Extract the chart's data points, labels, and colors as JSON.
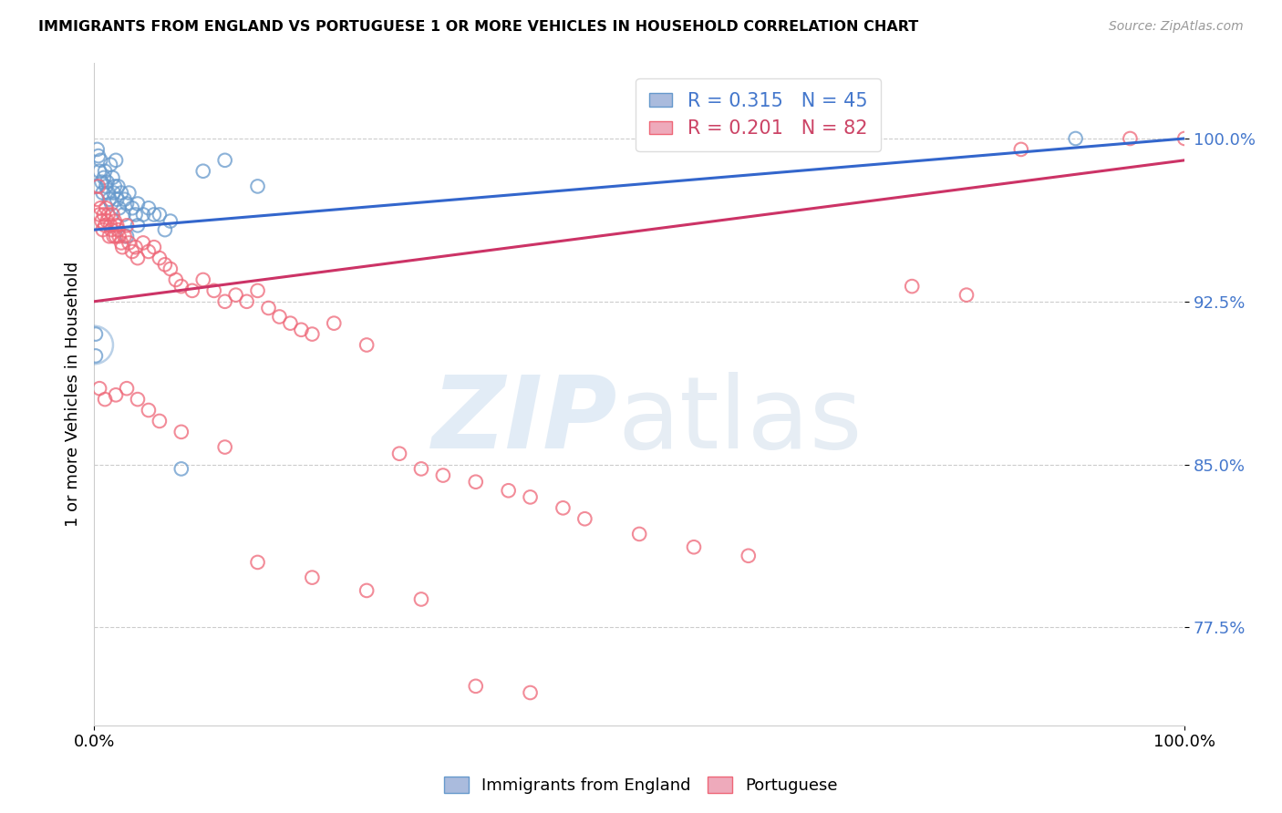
{
  "title": "IMMIGRANTS FROM ENGLAND VS PORTUGUESE 1 OR MORE VEHICLES IN HOUSEHOLD CORRELATION CHART",
  "source": "Source: ZipAtlas.com",
  "ylabel": "1 or more Vehicles in Household",
  "yticks": [
    77.5,
    85.0,
    92.5,
    100.0
  ],
  "ytick_labels": [
    "77.5%",
    "85.0%",
    "92.5%",
    "100.0%"
  ],
  "xrange": [
    0.0,
    100.0
  ],
  "yrange": [
    73.0,
    103.5
  ],
  "england_color": "#6699cc",
  "portuguese_color": "#ee6677",
  "england_r": 0.315,
  "england_n": 45,
  "portuguese_r": 0.201,
  "portuguese_n": 82,
  "england_x": [
    0.2,
    0.3,
    0.4,
    0.5,
    0.6,
    0.7,
    0.8,
    0.9,
    1.0,
    1.1,
    1.2,
    1.3,
    1.4,
    1.5,
    1.6,
    1.7,
    1.8,
    1.9,
    2.0,
    2.1,
    2.2,
    2.3,
    2.5,
    2.7,
    2.8,
    3.0,
    3.2,
    3.5,
    3.8,
    4.0,
    4.5,
    5.0,
    5.5,
    6.0,
    6.5,
    7.0,
    8.0,
    10.0,
    12.0,
    15.0,
    90.0,
    0.15,
    0.15,
    3.0,
    4.0
  ],
  "england_y": [
    97.8,
    99.5,
    99.2,
    98.5,
    99.0,
    98.0,
    97.5,
    98.2,
    98.5,
    97.8,
    98.0,
    97.5,
    97.2,
    98.8,
    97.0,
    98.2,
    97.5,
    97.8,
    99.0,
    97.2,
    97.8,
    96.8,
    97.5,
    96.5,
    97.2,
    97.0,
    97.5,
    96.8,
    96.5,
    97.0,
    96.5,
    96.8,
    96.5,
    96.5,
    95.8,
    96.2,
    84.8,
    98.5,
    99.0,
    97.8,
    100.0,
    90.0,
    91.0,
    95.5,
    96.0
  ],
  "england_y_large": [
    90.5
  ],
  "england_x_large": [
    0.0
  ],
  "portugal_x": [
    0.3,
    0.4,
    0.5,
    0.6,
    0.7,
    0.8,
    0.9,
    1.0,
    1.1,
    1.2,
    1.3,
    1.4,
    1.5,
    1.6,
    1.7,
    1.8,
    1.9,
    2.0,
    2.1,
    2.2,
    2.3,
    2.5,
    2.6,
    2.8,
    3.0,
    3.2,
    3.5,
    3.8,
    4.0,
    4.5,
    5.0,
    5.5,
    6.0,
    6.5,
    7.0,
    7.5,
    8.0,
    9.0,
    10.0,
    11.0,
    12.0,
    13.0,
    14.0,
    15.0,
    16.0,
    17.0,
    18.0,
    19.0,
    20.0,
    22.0,
    25.0,
    28.0,
    30.0,
    32.0,
    35.0,
    38.0,
    40.0,
    43.0,
    45.0,
    50.0,
    55.0,
    60.0,
    0.5,
    1.0,
    2.0,
    3.0,
    4.0,
    5.0,
    6.0,
    8.0,
    12.0,
    15.0,
    20.0,
    25.0,
    30.0,
    35.0,
    40.0,
    100.0,
    95.0,
    85.0,
    80.0,
    75.0
  ],
  "portugal_y": [
    97.2,
    97.8,
    96.5,
    96.8,
    96.2,
    95.8,
    96.5,
    96.0,
    96.8,
    96.2,
    96.5,
    95.5,
    96.0,
    95.8,
    96.5,
    95.5,
    96.2,
    95.5,
    96.0,
    95.8,
    95.5,
    95.2,
    95.0,
    95.5,
    96.0,
    95.2,
    94.8,
    95.0,
    94.5,
    95.2,
    94.8,
    95.0,
    94.5,
    94.2,
    94.0,
    93.5,
    93.2,
    93.0,
    93.5,
    93.0,
    92.5,
    92.8,
    92.5,
    93.0,
    92.2,
    91.8,
    91.5,
    91.2,
    91.0,
    91.5,
    90.5,
    85.5,
    84.8,
    84.5,
    84.2,
    83.8,
    83.5,
    83.0,
    82.5,
    81.8,
    81.2,
    80.8,
    88.5,
    88.0,
    88.2,
    88.5,
    88.0,
    87.5,
    87.0,
    86.5,
    85.8,
    80.5,
    79.8,
    79.2,
    78.8,
    74.8,
    74.5,
    100.0,
    100.0,
    99.5,
    92.8,
    93.2
  ]
}
